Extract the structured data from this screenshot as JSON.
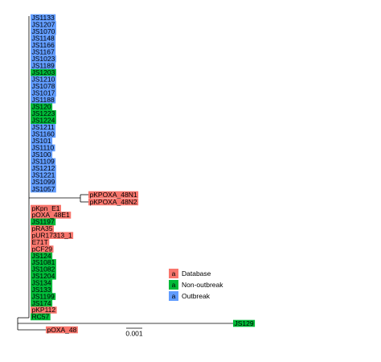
{
  "tips": [
    {
      "label": "JS1133",
      "color": "#619CFF"
    },
    {
      "label": "JS1207",
      "color": "#619CFF"
    },
    {
      "label": "JS1070",
      "color": "#619CFF"
    },
    {
      "label": "JS1148",
      "color": "#619CFF"
    },
    {
      "label": "JS1166",
      "color": "#619CFF"
    },
    {
      "label": "JS1167",
      "color": "#619CFF"
    },
    {
      "label": "JS1023",
      "color": "#619CFF"
    },
    {
      "label": "JS1189",
      "color": "#619CFF"
    },
    {
      "label": "JS1203",
      "color": "#00BA38"
    },
    {
      "label": "JS1210",
      "color": "#619CFF"
    },
    {
      "label": "JS1078",
      "color": "#619CFF"
    },
    {
      "label": "JS1017",
      "color": "#619CFF"
    },
    {
      "label": "JS1188",
      "color": "#619CFF"
    },
    {
      "label": "JS120",
      "color": "#00BA38"
    },
    {
      "label": "JS1223",
      "color": "#00BA38"
    },
    {
      "label": "JS1224",
      "color": "#00BA38"
    },
    {
      "label": "JS1211",
      "color": "#619CFF"
    },
    {
      "label": "JS1160",
      "color": "#619CFF"
    },
    {
      "label": "JS101",
      "color": "#619CFF"
    },
    {
      "label": "JS1110",
      "color": "#619CFF"
    },
    {
      "label": "JS100",
      "color": "#619CFF"
    },
    {
      "label": "JS1109",
      "color": "#619CFF"
    },
    {
      "label": "JS1212",
      "color": "#619CFF"
    },
    {
      "label": "JS1221",
      "color": "#619CFF"
    },
    {
      "label": "JS1099",
      "color": "#619CFF"
    },
    {
      "label": "JS1057",
      "color": "#619CFF"
    },
    {
      "label": "pKPOXA_48N1",
      "color": "#F8766D"
    },
    {
      "label": "pKPOXA_48N2",
      "color": "#F8766D"
    },
    {
      "label": "pKpn_E1",
      "color": "#F8766D"
    },
    {
      "label": "pOXA_48E1",
      "color": "#F8766D"
    },
    {
      "label": "JS1197",
      "color": "#00BA38"
    },
    {
      "label": "pRA35",
      "color": "#F8766D"
    },
    {
      "label": "pUR17313_1",
      "color": "#F8766D"
    },
    {
      "label": "E71T",
      "color": "#F8766D"
    },
    {
      "label": "pCF29",
      "color": "#F8766D"
    },
    {
      "label": "JS124",
      "color": "#00BA38"
    },
    {
      "label": "JS1081",
      "color": "#00BA38"
    },
    {
      "label": "JS1082",
      "color": "#00BA38"
    },
    {
      "label": "JS1204",
      "color": "#00BA38"
    },
    {
      "label": "JS134",
      "color": "#00BA38"
    },
    {
      "label": "JS133",
      "color": "#00BA38"
    },
    {
      "label": "JS1199",
      "color": "#00BA38"
    },
    {
      "label": "JS174",
      "color": "#00BA38"
    },
    {
      "label": "pKP112",
      "color": "#F8766D"
    },
    {
      "label": "RC57",
      "color": "#00BA38"
    },
    {
      "label": "JS129",
      "color": "#00BA38"
    },
    {
      "label": "pOXA_48",
      "color": "#F8766D"
    }
  ],
  "legend": {
    "items": [
      {
        "symbol": "a",
        "label": "Database",
        "color": "#F8766D"
      },
      {
        "symbol": "a",
        "label": "Non-outbreak",
        "color": "#00BA38"
      },
      {
        "symbol": "a",
        "label": "Outbreak",
        "color": "#619CFF"
      }
    ]
  },
  "scale_bar": "0.001"
}
